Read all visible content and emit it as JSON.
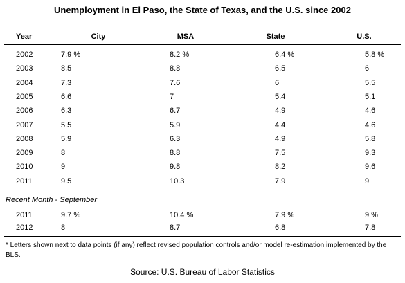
{
  "title": "Unemployment in El Paso, the State of Texas, and the U.S. since 2002",
  "table": {
    "header": [
      "Year",
      "City",
      "MSA",
      "State",
      "U.S."
    ],
    "rows": [
      [
        "2002",
        "7.9 %",
        "8.2 %",
        "6.4 %",
        "5.8 %"
      ],
      [
        "2003",
        "8.5",
        "8.8",
        "6.5",
        "6"
      ],
      [
        "2004",
        "7.3",
        "7.6",
        "6",
        "5.5"
      ],
      [
        "2005",
        "6.6",
        "7",
        "5.4",
        "5.1"
      ],
      [
        "2006",
        "6.3",
        "6.7",
        "4.9",
        "4.6"
      ],
      [
        "2007",
        "5.5",
        "5.9",
        "4.4",
        "4.6"
      ],
      [
        "2008",
        "5.9",
        "6.3",
        "4.9",
        "5.8"
      ],
      [
        "2009",
        "8",
        "8.8",
        "7.5",
        "9.3"
      ],
      [
        "2010",
        "9",
        "9.8",
        "8.2",
        "9.6"
      ],
      [
        "2011",
        "9.5",
        "10.3",
        "7.9",
        "9"
      ]
    ],
    "section": "Recent Month - September",
    "recent_rows": [
      [
        "2011",
        "9.7 %",
        "10.4 %",
        "7.9 %",
        "9 %"
      ],
      [
        "2012",
        "8",
        "8.7",
        "6.8",
        "7.8"
      ]
    ]
  },
  "footnote": "* Letters shown next to data points (if any) reflect revised population controls and/or model re-estimation implemented by the BLS.",
  "source": "Source: U.S. Bureau of Labor Statistics"
}
